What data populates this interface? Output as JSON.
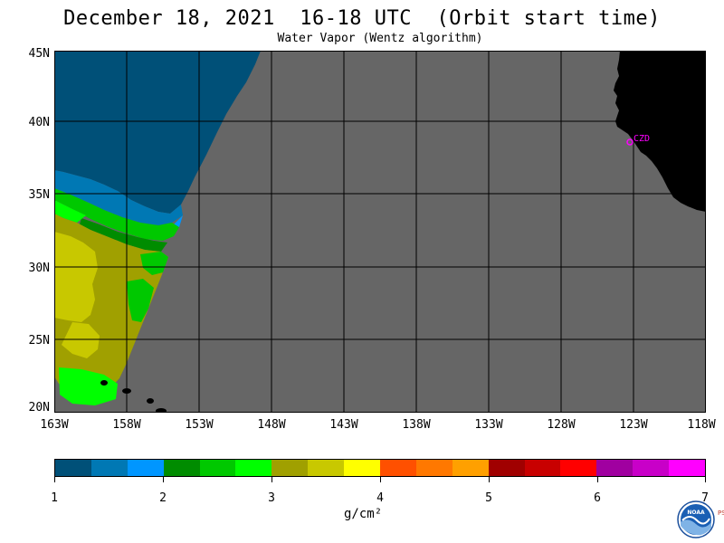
{
  "header": {
    "title": "December 18, 2021  16-18 UTC  (Orbit start time)",
    "subtitle": "Water Vapor (Wentz algorithm)"
  },
  "map": {
    "lat_labels": [
      "45N",
      "40N",
      "35N",
      "30N",
      "25N",
      "20N"
    ],
    "lon_labels": [
      "163W",
      "158W",
      "153W",
      "148W",
      "143W",
      "138W",
      "133W",
      "128W",
      "123W",
      "118W"
    ],
    "station_label": "CZD",
    "colors": {
      "no_data": "#666666",
      "land": "#000000",
      "grid": "#000000",
      "station": "#ff00ff"
    }
  },
  "colorbar": {
    "colors": [
      "#005078",
      "#0078b4",
      "#0096ff",
      "#008c00",
      "#00c800",
      "#00ff00",
      "#a0a000",
      "#c8c800",
      "#ffff00",
      "#ff5000",
      "#ff7800",
      "#ffa000",
      "#a00000",
      "#c80000",
      "#ff0000",
      "#a000a0",
      "#c800c8",
      "#ff00ff"
    ],
    "ticks": [
      "1",
      "2",
      "3",
      "4",
      "5",
      "6",
      "7"
    ],
    "units": "g/cm²"
  },
  "logo": {
    "text": "NOAA",
    "side_text": "PSL",
    "icon": "noaa-logo-icon"
  }
}
